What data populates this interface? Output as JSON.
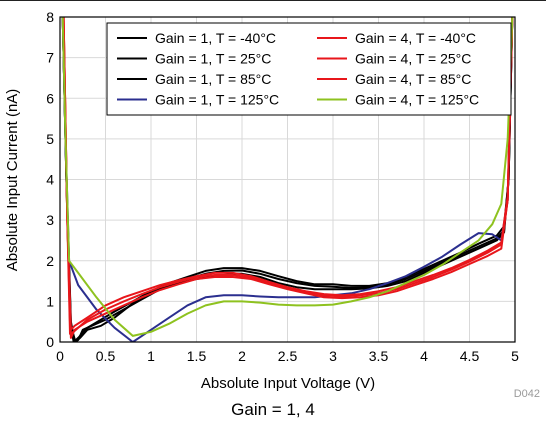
{
  "caption": "Gain = 1, 4",
  "figure_id": "D042",
  "chart_data": {
    "type": "line",
    "xlabel": "Absolute Input Voltage (V)",
    "ylabel": "Absolute Input Current (nA)",
    "xlim": [
      0,
      5
    ],
    "ylim": [
      0,
      8
    ],
    "xticks": [
      0,
      0.5,
      1,
      1.5,
      2,
      2.5,
      3,
      3.5,
      4,
      4.5,
      5
    ],
    "xtick_labels": [
      "0",
      "0.5",
      "1",
      "1.5",
      "2",
      "2.5",
      "3",
      "3.5",
      "4",
      "4.5",
      "5"
    ],
    "yticks": [
      0,
      1,
      2,
      3,
      4,
      5,
      6,
      7,
      8
    ],
    "ytick_labels": [
      "0",
      "1",
      "2",
      "3",
      "4",
      "5",
      "6",
      "7",
      "8"
    ],
    "grid": true,
    "legend_position": "top-right",
    "series": [
      {
        "name": "Gain = 1, T = -40°C",
        "color": "#000000",
        "points": [
          [
            0.03,
            8
          ],
          [
            0.07,
            4
          ],
          [
            0.12,
            0.5
          ],
          [
            0.16,
            0
          ],
          [
            0.2,
            0.05
          ],
          [
            0.25,
            0.3
          ],
          [
            0.4,
            0.45
          ],
          [
            0.5,
            0.55
          ],
          [
            0.7,
            0.8
          ],
          [
            0.9,
            1.05
          ],
          [
            1.1,
            1.3
          ],
          [
            1.3,
            1.45
          ],
          [
            1.5,
            1.55
          ],
          [
            1.7,
            1.62
          ],
          [
            1.9,
            1.68
          ],
          [
            2.0,
            1.68
          ],
          [
            2.2,
            1.6
          ],
          [
            2.4,
            1.45
          ],
          [
            2.6,
            1.35
          ],
          [
            2.8,
            1.3
          ],
          [
            3.0,
            1.3
          ],
          [
            3.2,
            1.3
          ],
          [
            3.4,
            1.32
          ],
          [
            3.6,
            1.38
          ],
          [
            3.8,
            1.5
          ],
          [
            4.0,
            1.7
          ],
          [
            4.2,
            1.9
          ],
          [
            4.4,
            2.1
          ],
          [
            4.6,
            2.3
          ],
          [
            4.8,
            2.5
          ],
          [
            4.88,
            2.7
          ],
          [
            4.93,
            4
          ],
          [
            4.97,
            8
          ]
        ]
      },
      {
        "name": "Gain = 1, T = 25°C",
        "color": "#000000",
        "points": [
          [
            0.03,
            8
          ],
          [
            0.07,
            4
          ],
          [
            0.12,
            0.4
          ],
          [
            0.17,
            0
          ],
          [
            0.22,
            0.1
          ],
          [
            0.3,
            0.3
          ],
          [
            0.45,
            0.4
          ],
          [
            0.6,
            0.6
          ],
          [
            0.8,
            0.95
          ],
          [
            1.0,
            1.2
          ],
          [
            1.2,
            1.4
          ],
          [
            1.4,
            1.55
          ],
          [
            1.6,
            1.68
          ],
          [
            1.8,
            1.75
          ],
          [
            2.0,
            1.76
          ],
          [
            2.2,
            1.68
          ],
          [
            2.4,
            1.55
          ],
          [
            2.6,
            1.45
          ],
          [
            2.8,
            1.38
          ],
          [
            3.0,
            1.36
          ],
          [
            3.2,
            1.33
          ],
          [
            3.4,
            1.35
          ],
          [
            3.6,
            1.42
          ],
          [
            3.8,
            1.55
          ],
          [
            4.0,
            1.75
          ],
          [
            4.2,
            1.95
          ],
          [
            4.4,
            2.15
          ],
          [
            4.6,
            2.35
          ],
          [
            4.8,
            2.55
          ],
          [
            4.88,
            2.75
          ],
          [
            4.93,
            4
          ],
          [
            4.97,
            8
          ]
        ]
      },
      {
        "name": "Gain = 1, T = 85°C",
        "color": "#000000",
        "points": [
          [
            0.03,
            8
          ],
          [
            0.07,
            4
          ],
          [
            0.11,
            0.5
          ],
          [
            0.15,
            0
          ],
          [
            0.2,
            0.1
          ],
          [
            0.3,
            0.35
          ],
          [
            0.45,
            0.55
          ],
          [
            0.6,
            0.75
          ],
          [
            0.8,
            1.0
          ],
          [
            1.0,
            1.25
          ],
          [
            1.2,
            1.45
          ],
          [
            1.4,
            1.6
          ],
          [
            1.6,
            1.75
          ],
          [
            1.8,
            1.82
          ],
          [
            2.0,
            1.82
          ],
          [
            2.2,
            1.75
          ],
          [
            2.4,
            1.62
          ],
          [
            2.6,
            1.5
          ],
          [
            2.8,
            1.42
          ],
          [
            3.0,
            1.42
          ],
          [
            3.2,
            1.38
          ],
          [
            3.4,
            1.38
          ],
          [
            3.6,
            1.45
          ],
          [
            3.8,
            1.6
          ],
          [
            4.0,
            1.8
          ],
          [
            4.2,
            2.0
          ],
          [
            4.4,
            2.2
          ],
          [
            4.6,
            2.42
          ],
          [
            4.8,
            2.62
          ],
          [
            4.88,
            2.85
          ],
          [
            4.93,
            4
          ],
          [
            4.97,
            8
          ]
        ]
      },
      {
        "name": "Gain = 1, T = 125°C",
        "color": "#2b2f8f",
        "points": [
          [
            0.03,
            8
          ],
          [
            0.06,
            5
          ],
          [
            0.1,
            2.0
          ],
          [
            0.2,
            1.4
          ],
          [
            0.4,
            0.8
          ],
          [
            0.6,
            0.35
          ],
          [
            0.8,
            0.0
          ],
          [
            0.9,
            0.15
          ],
          [
            1.0,
            0.3
          ],
          [
            1.2,
            0.6
          ],
          [
            1.4,
            0.9
          ],
          [
            1.6,
            1.1
          ],
          [
            1.8,
            1.15
          ],
          [
            2.0,
            1.15
          ],
          [
            2.2,
            1.12
          ],
          [
            2.4,
            1.1
          ],
          [
            2.6,
            1.1
          ],
          [
            2.8,
            1.1
          ],
          [
            3.0,
            1.15
          ],
          [
            3.2,
            1.2
          ],
          [
            3.4,
            1.3
          ],
          [
            3.6,
            1.45
          ],
          [
            3.8,
            1.62
          ],
          [
            4.0,
            1.85
          ],
          [
            4.2,
            2.1
          ],
          [
            4.4,
            2.4
          ],
          [
            4.6,
            2.68
          ],
          [
            4.75,
            2.65
          ],
          [
            4.85,
            2.5
          ],
          [
            4.92,
            3.5
          ],
          [
            4.97,
            8
          ]
        ]
      },
      {
        "name": "Gain = 4, T = -40°C",
        "color": "#e8161b",
        "points": [
          [
            0.04,
            8
          ],
          [
            0.08,
            3
          ],
          [
            0.12,
            0.1
          ],
          [
            0.16,
            0.3
          ],
          [
            0.3,
            0.5
          ],
          [
            0.5,
            0.7
          ],
          [
            0.7,
            0.9
          ],
          [
            0.9,
            1.1
          ],
          [
            1.1,
            1.28
          ],
          [
            1.3,
            1.42
          ],
          [
            1.5,
            1.55
          ],
          [
            1.7,
            1.6
          ],
          [
            1.9,
            1.6
          ],
          [
            2.1,
            1.55
          ],
          [
            2.3,
            1.42
          ],
          [
            2.5,
            1.3
          ],
          [
            2.7,
            1.2
          ],
          [
            2.9,
            1.1
          ],
          [
            3.1,
            1.08
          ],
          [
            3.3,
            1.1
          ],
          [
            3.5,
            1.15
          ],
          [
            3.7,
            1.25
          ],
          [
            3.9,
            1.4
          ],
          [
            4.1,
            1.55
          ],
          [
            4.3,
            1.72
          ],
          [
            4.5,
            1.92
          ],
          [
            4.7,
            2.12
          ],
          [
            4.85,
            2.3
          ],
          [
            4.92,
            3.5
          ],
          [
            4.97,
            8
          ]
        ]
      },
      {
        "name": "Gain = 4, T = 25°C",
        "color": "#e8161b",
        "points": [
          [
            0.04,
            8
          ],
          [
            0.08,
            3
          ],
          [
            0.11,
            0.2
          ],
          [
            0.15,
            0.25
          ],
          [
            0.3,
            0.55
          ],
          [
            0.5,
            0.8
          ],
          [
            0.7,
            1.0
          ],
          [
            0.9,
            1.18
          ],
          [
            1.1,
            1.35
          ],
          [
            1.3,
            1.48
          ],
          [
            1.5,
            1.6
          ],
          [
            1.7,
            1.65
          ],
          [
            1.9,
            1.65
          ],
          [
            2.1,
            1.58
          ],
          [
            2.3,
            1.45
          ],
          [
            2.5,
            1.32
          ],
          [
            2.7,
            1.22
          ],
          [
            2.9,
            1.15
          ],
          [
            3.1,
            1.12
          ],
          [
            3.3,
            1.15
          ],
          [
            3.5,
            1.2
          ],
          [
            3.7,
            1.3
          ],
          [
            3.9,
            1.45
          ],
          [
            4.1,
            1.6
          ],
          [
            4.3,
            1.78
          ],
          [
            4.5,
            1.98
          ],
          [
            4.7,
            2.2
          ],
          [
            4.85,
            2.4
          ],
          [
            4.92,
            3.5
          ],
          [
            4.97,
            8
          ]
        ]
      },
      {
        "name": "Gain = 4, T = 85°C",
        "color": "#e8161b",
        "points": [
          [
            0.04,
            8
          ],
          [
            0.08,
            3
          ],
          [
            0.12,
            0.3
          ],
          [
            0.16,
            0.4
          ],
          [
            0.3,
            0.6
          ],
          [
            0.5,
            0.9
          ],
          [
            0.7,
            1.1
          ],
          [
            0.9,
            1.25
          ],
          [
            1.1,
            1.4
          ],
          [
            1.3,
            1.52
          ],
          [
            1.5,
            1.62
          ],
          [
            1.7,
            1.7
          ],
          [
            1.9,
            1.7
          ],
          [
            2.1,
            1.62
          ],
          [
            2.3,
            1.48
          ],
          [
            2.5,
            1.35
          ],
          [
            2.7,
            1.25
          ],
          [
            2.9,
            1.18
          ],
          [
            3.1,
            1.15
          ],
          [
            3.3,
            1.18
          ],
          [
            3.5,
            1.25
          ],
          [
            3.7,
            1.35
          ],
          [
            3.9,
            1.5
          ],
          [
            4.1,
            1.65
          ],
          [
            4.3,
            1.82
          ],
          [
            4.5,
            2.02
          ],
          [
            4.7,
            2.25
          ],
          [
            4.85,
            2.45
          ],
          [
            4.92,
            3.6
          ],
          [
            4.97,
            8
          ]
        ]
      },
      {
        "name": "Gain = 4, T = 125°C",
        "color": "#8ec21f",
        "points": [
          [
            0.03,
            8
          ],
          [
            0.06,
            5
          ],
          [
            0.1,
            2.0
          ],
          [
            0.2,
            1.7
          ],
          [
            0.4,
            1.1
          ],
          [
            0.6,
            0.55
          ],
          [
            0.8,
            0.15
          ],
          [
            1.0,
            0.25
          ],
          [
            1.2,
            0.45
          ],
          [
            1.4,
            0.7
          ],
          [
            1.6,
            0.9
          ],
          [
            1.8,
            1.0
          ],
          [
            2.0,
            1.0
          ],
          [
            2.2,
            0.97
          ],
          [
            2.4,
            0.92
          ],
          [
            2.6,
            0.9
          ],
          [
            2.8,
            0.9
          ],
          [
            3.0,
            0.92
          ],
          [
            3.2,
            1.0
          ],
          [
            3.4,
            1.1
          ],
          [
            3.6,
            1.25
          ],
          [
            3.8,
            1.45
          ],
          [
            4.0,
            1.65
          ],
          [
            4.2,
            1.9
          ],
          [
            4.4,
            2.2
          ],
          [
            4.6,
            2.5
          ],
          [
            4.75,
            2.9
          ],
          [
            4.85,
            3.4
          ],
          [
            4.92,
            5.0
          ],
          [
            4.97,
            8
          ]
        ]
      }
    ]
  }
}
